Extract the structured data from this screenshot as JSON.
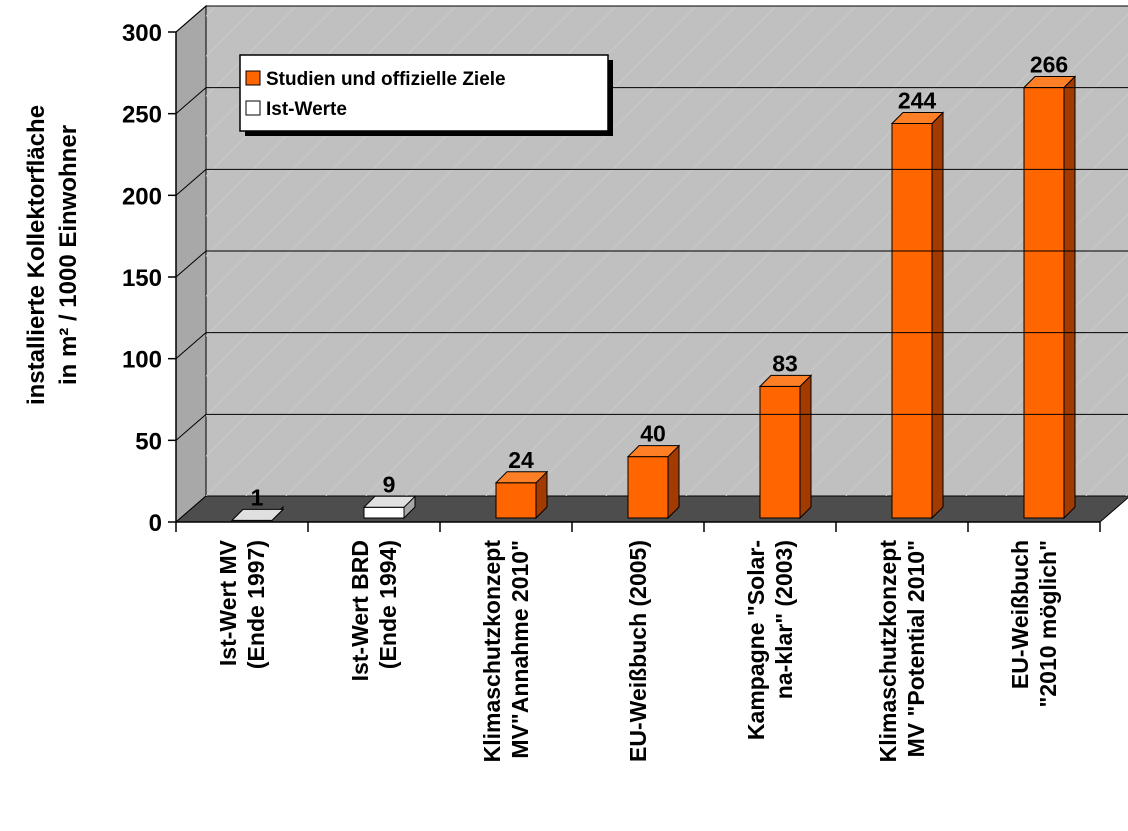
{
  "chart_data": {
    "type": "bar",
    "ylabel": [
      "installierte Kollektorfläche",
      "in m² / 1000 Einwohner"
    ],
    "ylim": [
      0,
      300
    ],
    "yticks": [
      0,
      50,
      100,
      150,
      200,
      250,
      300
    ],
    "grid": true,
    "legend_position": "top-left",
    "legend": [
      {
        "name": "Studien und offizielle Ziele",
        "color": "#ff6600"
      },
      {
        "name": "Ist-Werte",
        "color": "#ffffff"
      }
    ],
    "categories": [
      [
        "Ist-Wert MV",
        "(Ende 1997)"
      ],
      [
        "Ist-Wert BRD",
        "(Ende 1994)"
      ],
      [
        "Klimaschutzkonzept",
        "MV\"Annahme 2010\""
      ],
      [
        "EU-Weißbuch (2005)"
      ],
      [
        "Kampagne \"Solar-",
        "na-klar\" (2003)"
      ],
      [
        "Klimaschutzkonzept",
        "MV \"Potential 2010\""
      ],
      [
        "EU-Weißbuch",
        "\"2010 möglich\""
      ]
    ],
    "values": [
      1,
      9,
      24,
      40,
      83,
      244,
      266
    ],
    "value_labels": [
      "1",
      "9",
      "24",
      "40",
      "83",
      "244",
      "266"
    ],
    "series_index": [
      1,
      1,
      0,
      0,
      0,
      0,
      0
    ],
    "colors": {
      "target_front": "#ff6600",
      "target_side": "#a33b00",
      "target_top": "#ff7f26",
      "actual_front": "#ffffff",
      "actual_side": "#a6a6a6",
      "actual_top": "#e0e0e0",
      "wall": "#c0c0c0",
      "floor": "#4d4d4d"
    }
  }
}
